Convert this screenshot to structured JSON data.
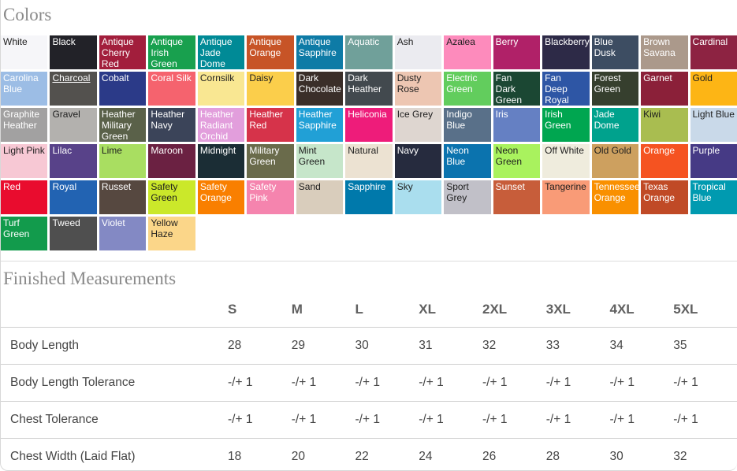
{
  "colors_section": {
    "heading": "Colors",
    "swatches": [
      {
        "name": "White",
        "bg": "#f6f6f9",
        "text_on": "dark"
      },
      {
        "name": "Black",
        "bg": "#222228",
        "text_on": "light"
      },
      {
        "name": "Antique Cherry Red",
        "bg": "#a21e3c",
        "text_on": "light"
      },
      {
        "name": "Antique Irish Green",
        "bg": "#18a04e",
        "text_on": "light"
      },
      {
        "name": "Antique Jade Dome",
        "bg": "#008a96",
        "text_on": "light"
      },
      {
        "name": "Antique Orange",
        "bg": "#c75427",
        "text_on": "light"
      },
      {
        "name": "Antique Sapphire",
        "bg": "#0e7ba6",
        "text_on": "light"
      },
      {
        "name": "Aquatic",
        "bg": "#70a09a",
        "text_on": "light"
      },
      {
        "name": "Ash",
        "bg": "#ebebf0",
        "text_on": "dark"
      },
      {
        "name": "Azalea",
        "bg": "#fd8bbc",
        "text_on": "dark"
      },
      {
        "name": "Berry",
        "bg": "#b02168",
        "text_on": "light"
      },
      {
        "name": "Blackberry",
        "bg": "#2d2a47",
        "text_on": "light",
        "one_line": true
      },
      {
        "name": "Blue Dusk",
        "bg": "#3d4d62",
        "text_on": "light"
      },
      {
        "name": "Brown Savana",
        "bg": "#ab998b",
        "text_on": "light"
      },
      {
        "name": "Cardinal",
        "bg": "#8d2342",
        "text_on": "light"
      },
      {
        "name": "Carolina Blue",
        "bg": "#9cbde5",
        "text_on": "light"
      },
      {
        "name": "Charcoal",
        "bg": "#53514e",
        "text_on": "light",
        "underline": true
      },
      {
        "name": "Cobalt",
        "bg": "#2b3a88",
        "text_on": "light"
      },
      {
        "name": "Coral Silk",
        "bg": "#f5636e",
        "text_on": "light",
        "one_line": true
      },
      {
        "name": "Cornsilk",
        "bg": "#f9e792",
        "text_on": "dark"
      },
      {
        "name": "Daisy",
        "bg": "#fbce4b",
        "text_on": "dark"
      },
      {
        "name": "Dark Chocolate",
        "bg": "#3a2e29",
        "text_on": "light"
      },
      {
        "name": "Dark Heather",
        "bg": "#42494e",
        "text_on": "light"
      },
      {
        "name": "Dusty Rose",
        "bg": "#edc6b2",
        "text_on": "dark"
      },
      {
        "name": "Electric Green",
        "bg": "#62cd5d",
        "text_on": "light"
      },
      {
        "name": "Fan Dark Green",
        "bg": "#1b4733",
        "text_on": "light"
      },
      {
        "name": "Fan Deep Royal",
        "bg": "#2e56a5",
        "text_on": "light"
      },
      {
        "name": "Forest Green",
        "bg": "#363f2e",
        "text_on": "light"
      },
      {
        "name": "Garnet",
        "bg": "#8b2039",
        "text_on": "light"
      },
      {
        "name": "Gold",
        "bg": "#fdb515",
        "text_on": "dark"
      },
      {
        "name": "Graphite Heather",
        "bg": "#a2a1a1",
        "text_on": "light"
      },
      {
        "name": "Gravel",
        "bg": "#b3b1ae",
        "text_on": "dark"
      },
      {
        "name": "Heather Military Green",
        "bg": "#5a6149",
        "text_on": "light"
      },
      {
        "name": "Heather Navy",
        "bg": "#3b4459",
        "text_on": "light"
      },
      {
        "name": "Heather Radiant Orchid",
        "bg": "#e29edc",
        "text_on": "light"
      },
      {
        "name": "Heather Red",
        "bg": "#d6334a",
        "text_on": "light"
      },
      {
        "name": "Heather Sapphire",
        "bg": "#21a0d6",
        "text_on": "light"
      },
      {
        "name": "Heliconia",
        "bg": "#ee1c7a",
        "text_on": "light",
        "one_line": true
      },
      {
        "name": "Ice Grey",
        "bg": "#ded6d0",
        "text_on": "dark",
        "one_line": true
      },
      {
        "name": "Indigo Blue",
        "bg": "#597089",
        "text_on": "light"
      },
      {
        "name": "Iris",
        "bg": "#6580c3",
        "text_on": "light"
      },
      {
        "name": "Irish Green",
        "bg": "#00a650",
        "text_on": "light"
      },
      {
        "name": "Jade Dome",
        "bg": "#00a28d",
        "text_on": "light"
      },
      {
        "name": "Kiwi",
        "bg": "#a9bd50",
        "text_on": "dark"
      },
      {
        "name": "Light Blue",
        "bg": "#c9d9e9",
        "text_on": "dark",
        "one_line": true
      },
      {
        "name": "Light Pink",
        "bg": "#f7c8d4",
        "text_on": "dark",
        "one_line": true
      },
      {
        "name": "Lilac",
        "bg": "#584289",
        "text_on": "light"
      },
      {
        "name": "Lime",
        "bg": "#a9de61",
        "text_on": "dark"
      },
      {
        "name": "Maroon",
        "bg": "#6b2142",
        "text_on": "light"
      },
      {
        "name": "Midnight",
        "bg": "#1b2d35",
        "text_on": "light"
      },
      {
        "name": "Military Green",
        "bg": "#6a6b4b",
        "text_on": "light"
      },
      {
        "name": "Mint Green",
        "bg": "#c6e6ca",
        "text_on": "dark"
      },
      {
        "name": "Natural",
        "bg": "#ece2d2",
        "text_on": "dark"
      },
      {
        "name": "Navy",
        "bg": "#262b3e",
        "text_on": "light"
      },
      {
        "name": "Neon Blue",
        "bg": "#0b73ae",
        "text_on": "light"
      },
      {
        "name": "Neon Green",
        "bg": "#a9f25e",
        "text_on": "dark"
      },
      {
        "name": "Off White",
        "bg": "#efecdd",
        "text_on": "dark",
        "one_line": true
      },
      {
        "name": "Old Gold",
        "bg": "#cda05f",
        "text_on": "dark",
        "one_line": true
      },
      {
        "name": "Orange",
        "bg": "#f55321",
        "text_on": "light"
      },
      {
        "name": "Purple",
        "bg": "#463a85",
        "text_on": "light"
      },
      {
        "name": "Red",
        "bg": "#e90c2e",
        "text_on": "light"
      },
      {
        "name": "Royal",
        "bg": "#2263b2",
        "text_on": "light"
      },
      {
        "name": "Russet",
        "bg": "#564840",
        "text_on": "light"
      },
      {
        "name": "Safety Green",
        "bg": "#cbe82a",
        "text_on": "dark"
      },
      {
        "name": "Safety Orange",
        "bg": "#f97f00",
        "text_on": "light"
      },
      {
        "name": "Safety Pink",
        "bg": "#f584ae",
        "text_on": "light"
      },
      {
        "name": "Sand",
        "bg": "#d9cdbc",
        "text_on": "dark"
      },
      {
        "name": "Sapphire",
        "bg": "#0079ab",
        "text_on": "light"
      },
      {
        "name": "Sky",
        "bg": "#aadeee",
        "text_on": "dark"
      },
      {
        "name": "Sport Grey",
        "bg": "#c1c0c8",
        "text_on": "dark"
      },
      {
        "name": "Sunset",
        "bg": "#c75d3a",
        "text_on": "light"
      },
      {
        "name": "Tangerine",
        "bg": "#f99b77",
        "text_on": "dark"
      },
      {
        "name": "Tennessee Orange",
        "bg": "#f99000",
        "text_on": "light"
      },
      {
        "name": "Texas Orange",
        "bg": "#c04a26",
        "text_on": "light"
      },
      {
        "name": "Tropical Blue",
        "bg": "#009ab0",
        "text_on": "light"
      },
      {
        "name": "Turf Green",
        "bg": "#129b4c",
        "text_on": "light"
      },
      {
        "name": "Tweed",
        "bg": "#4f4f4f",
        "text_on": "light"
      },
      {
        "name": "Violet",
        "bg": "#8389c4",
        "text_on": "light"
      },
      {
        "name": "Yellow Haze",
        "bg": "#fbd689",
        "text_on": "dark"
      }
    ]
  },
  "measurements": {
    "heading": "Finished Measurements",
    "columns": [
      "S",
      "M",
      "L",
      "XL",
      "2XL",
      "3XL",
      "4XL",
      "5XL"
    ],
    "rows": [
      {
        "label": "Body Length",
        "values": [
          "28",
          "29",
          "30",
          "31",
          "32",
          "33",
          "34",
          "35"
        ]
      },
      {
        "label": "Body Length Tolerance",
        "values": [
          "-/+ 1",
          "-/+ 1",
          "-/+ 1",
          "-/+ 1",
          "-/+ 1",
          "-/+ 1",
          "-/+ 1",
          "-/+ 1"
        ]
      },
      {
        "label": "Chest Tolerance",
        "values": [
          "-/+ 1",
          "-/+ 1",
          "-/+ 1",
          "-/+ 1",
          "-/+ 1",
          "-/+ 1",
          "-/+ 1",
          "-/+ 1"
        ]
      },
      {
        "label": "Chest Width (Laid Flat)",
        "values": [
          "18",
          "20",
          "22",
          "24",
          "26",
          "28",
          "30",
          "32"
        ]
      }
    ]
  }
}
